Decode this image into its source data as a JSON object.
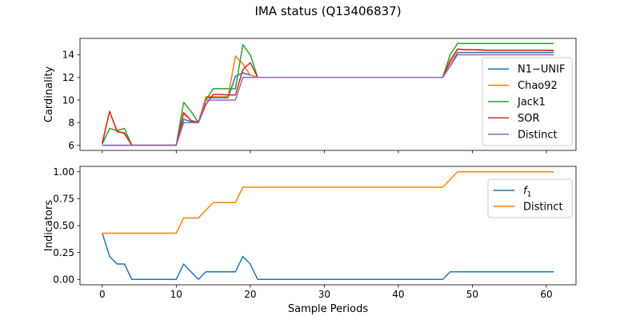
{
  "figure": {
    "title": "IMA status (Q13406837)"
  },
  "chart_data": [
    {
      "type": "line",
      "ylabel": "Cardinality",
      "xlabel": "",
      "xlim": [
        -3,
        64
      ],
      "ylim": [
        5.55,
        15.45
      ],
      "xticks": [
        0,
        10,
        20,
        30,
        40,
        50,
        60
      ],
      "yticks": [
        6,
        8,
        10,
        12,
        14
      ],
      "yticklabels": [
        "6",
        "8",
        "10",
        "12",
        "14"
      ],
      "show_xticklabels": false,
      "grid": false,
      "legend_position": "right",
      "x": [
        0,
        1,
        2,
        3,
        4,
        5,
        6,
        7,
        8,
        9,
        10,
        11,
        12,
        13,
        14,
        15,
        16,
        17,
        18,
        19,
        20,
        21,
        22,
        23,
        24,
        25,
        26,
        27,
        28,
        29,
        30,
        31,
        32,
        33,
        34,
        35,
        36,
        37,
        38,
        39,
        40,
        41,
        42,
        43,
        44,
        45,
        46,
        47,
        48,
        49,
        50,
        51,
        52,
        53,
        54,
        55,
        56,
        57,
        58,
        59,
        60,
        61
      ],
      "series": [
        {
          "name": "N1−UNIF",
          "color": "#1f77b4",
          "values": [
            6,
            6,
            6,
            6,
            6,
            6,
            6,
            6,
            6,
            6,
            6,
            8.3,
            8.1,
            8.1,
            10.2,
            10.2,
            10.2,
            10.2,
            12.1,
            12.4,
            12.2,
            12.0,
            12,
            12,
            12,
            12,
            12,
            12,
            12,
            12,
            12,
            12,
            12,
            12,
            12,
            12,
            12,
            12,
            12,
            12,
            12,
            12,
            12,
            12,
            12,
            12,
            12,
            13.0,
            14.2,
            14.2,
            14.2,
            14.2,
            14.2,
            14.2,
            14.2,
            14.2,
            14.2,
            14.2,
            14.2,
            14.2,
            14.2,
            14.2
          ]
        },
        {
          "name": "Chao92",
          "color": "#ff7f0e",
          "values": [
            6.1,
            9.0,
            7.3,
            7.0,
            6.0,
            6.0,
            6.0,
            6.0,
            6.0,
            6.0,
            6.0,
            8.8,
            8.2,
            8.0,
            10.3,
            10.3,
            10.3,
            10.3,
            13.9,
            13.2,
            12.2,
            12.0,
            12,
            12,
            12,
            12,
            12,
            12,
            12,
            12,
            12,
            12,
            12,
            12,
            12,
            12,
            12,
            12,
            12,
            12,
            12,
            12,
            12,
            12,
            12,
            12,
            12,
            13.3,
            14.5,
            14.45,
            14.45,
            14.4,
            14.4,
            14.4,
            14.4,
            14.4,
            14.4,
            14.4,
            14.4,
            14.4,
            14.4,
            14.4
          ]
        },
        {
          "name": "Jack1",
          "color": "#2ca02c",
          "values": [
            6.1,
            7.5,
            7.3,
            7.5,
            6.0,
            6.0,
            6.0,
            6.0,
            6.0,
            6.0,
            6.0,
            9.8,
            9.0,
            8.0,
            10.0,
            11.0,
            11.0,
            11.0,
            11.0,
            14.9,
            14.0,
            12.0,
            12,
            12,
            12,
            12,
            12,
            12,
            12,
            12,
            12,
            12,
            12,
            12,
            12,
            12,
            12,
            12,
            12,
            12,
            12,
            12,
            12,
            12,
            12,
            12,
            12,
            14.0,
            15.0,
            15.0,
            15.0,
            15.0,
            15.0,
            15.0,
            15.0,
            15.0,
            15.0,
            15.0,
            15.0,
            15.0,
            15.0,
            15.0
          ]
        },
        {
          "name": "SOR",
          "color": "#d62728",
          "values": [
            6.2,
            9.0,
            7.2,
            7.1,
            6.0,
            6.0,
            6.0,
            6.0,
            6.0,
            6.0,
            6.0,
            8.9,
            8.2,
            8.0,
            9.6,
            10.5,
            10.5,
            10.45,
            10.45,
            12.7,
            13.3,
            12.0,
            12,
            12,
            12,
            12,
            12,
            12,
            12,
            12,
            12,
            12,
            12,
            12,
            12,
            12,
            12,
            12,
            12,
            12,
            12,
            12,
            12,
            12,
            12,
            12,
            12,
            13.5,
            14.5,
            14.45,
            14.45,
            14.45,
            14.4,
            14.4,
            14.4,
            14.4,
            14.4,
            14.4,
            14.4,
            14.4,
            14.4,
            14.35
          ]
        },
        {
          "name": "Distinct",
          "color": "#9467bd",
          "values": [
            6,
            6,
            6,
            6,
            6,
            6,
            6,
            6,
            6,
            6,
            6,
            8,
            8,
            8,
            10,
            10,
            10,
            10,
            10,
            12,
            12,
            12,
            12,
            12,
            12,
            12,
            12,
            12,
            12,
            12,
            12,
            12,
            12,
            12,
            12,
            12,
            12,
            12,
            12,
            12,
            12,
            12,
            12,
            12,
            12,
            12,
            12,
            13,
            14,
            14,
            14,
            14,
            14,
            14,
            14,
            14,
            14,
            14,
            14,
            14,
            14,
            14
          ]
        }
      ]
    },
    {
      "type": "line",
      "ylabel": "Indicators",
      "xlabel": "Sample Periods",
      "xlim": [
        -3,
        64
      ],
      "ylim": [
        -0.05,
        1.05
      ],
      "xticks": [
        0,
        10,
        20,
        30,
        40,
        50,
        60
      ],
      "xticklabels": [
        "0",
        "10",
        "20",
        "30",
        "40",
        "50",
        "60"
      ],
      "yticks": [
        0,
        0.25,
        0.5,
        0.75,
        1.0
      ],
      "yticklabels": [
        "0.00",
        "0.25",
        "0.50",
        "0.75",
        "1.00"
      ],
      "show_xticklabels": true,
      "grid": false,
      "legend_position": "top-right",
      "x": [
        0,
        1,
        2,
        3,
        4,
        5,
        6,
        7,
        8,
        9,
        10,
        11,
        12,
        13,
        14,
        15,
        16,
        17,
        18,
        19,
        20,
        21,
        22,
        23,
        24,
        25,
        26,
        27,
        28,
        29,
        30,
        31,
        32,
        33,
        34,
        35,
        36,
        37,
        38,
        39,
        40,
        41,
        42,
        43,
        44,
        45,
        46,
        47,
        48,
        49,
        50,
        51,
        52,
        53,
        54,
        55,
        56,
        57,
        58,
        59,
        60,
        61
      ],
      "series": [
        {
          "name": "f",
          "sub": "1",
          "color": "#1f77b4",
          "values": [
            0.43,
            0.214,
            0.143,
            0.143,
            0,
            0,
            0,
            0,
            0,
            0,
            0,
            0.143,
            0.071,
            0,
            0.071,
            0.071,
            0.071,
            0.071,
            0.071,
            0.214,
            0.143,
            0,
            0,
            0,
            0,
            0,
            0,
            0,
            0,
            0,
            0,
            0,
            0,
            0,
            0,
            0,
            0,
            0,
            0,
            0,
            0,
            0,
            0,
            0,
            0,
            0,
            0,
            0.071,
            0.071,
            0.071,
            0.071,
            0.071,
            0.071,
            0.071,
            0.071,
            0.071,
            0.071,
            0.071,
            0.071,
            0.071,
            0.071,
            0.071
          ]
        },
        {
          "name": "Distinct",
          "color": "#ff7f0e",
          "values": [
            0.429,
            0.429,
            0.429,
            0.429,
            0.429,
            0.429,
            0.429,
            0.429,
            0.429,
            0.429,
            0.429,
            0.571,
            0.571,
            0.571,
            0.643,
            0.714,
            0.714,
            0.714,
            0.714,
            0.857,
            0.857,
            0.857,
            0.857,
            0.857,
            0.857,
            0.857,
            0.857,
            0.857,
            0.857,
            0.857,
            0.857,
            0.857,
            0.857,
            0.857,
            0.857,
            0.857,
            0.857,
            0.857,
            0.857,
            0.857,
            0.857,
            0.857,
            0.857,
            0.857,
            0.857,
            0.857,
            0.857,
            0.929,
            1.0,
            1.0,
            1.0,
            1.0,
            1.0,
            1.0,
            1.0,
            1.0,
            1.0,
            1.0,
            1.0,
            1.0,
            1.0,
            1.0
          ]
        }
      ]
    }
  ]
}
